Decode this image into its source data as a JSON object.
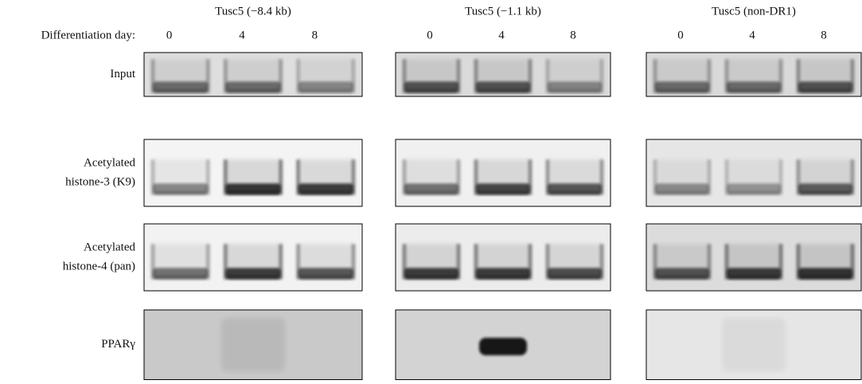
{
  "day_label": "Differentiation day:",
  "columns": [
    {
      "title": "Tusc5 (−8.4 kb)",
      "days": [
        "0",
        "4",
        "8"
      ]
    },
    {
      "title": "Tusc5 (−1.1 kb)",
      "days": [
        "0",
        "4",
        "8"
      ]
    },
    {
      "title": "Tusc5 (non-DR1)",
      "days": [
        "0",
        "4",
        "8"
      ]
    }
  ],
  "rows": [
    {
      "label_lines": [
        "Input"
      ]
    },
    {
      "label_lines": [
        "Acetylated",
        "histone-3 (K9)"
      ]
    },
    {
      "label_lines": [
        "Acetylated",
        "histone-4 (pan)"
      ]
    },
    {
      "label_lines": [
        "PPARγ"
      ]
    }
  ]
}
